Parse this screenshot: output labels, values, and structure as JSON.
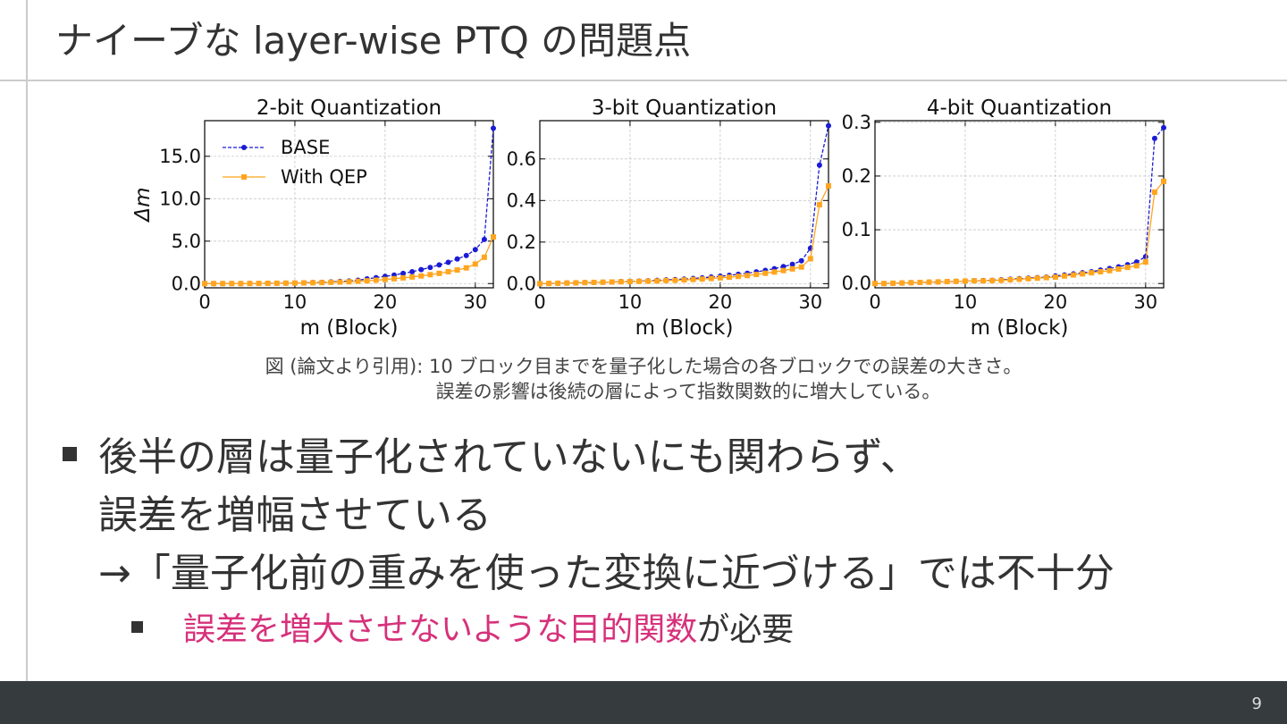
{
  "title": "ナイーブな layer-wise PTQ の問題点",
  "chart_data": [
    {
      "type": "line",
      "title": "2-bit Quantization",
      "xlabel": "m (Block)",
      "ylabel": "Δm",
      "legend": "upper left",
      "grid": true,
      "x": [
        0,
        1,
        2,
        3,
        4,
        5,
        6,
        7,
        8,
        9,
        10,
        11,
        12,
        13,
        14,
        15,
        16,
        17,
        18,
        19,
        20,
        21,
        22,
        23,
        24,
        25,
        26,
        27,
        28,
        29,
        30,
        31,
        32
      ],
      "xlim": [
        0,
        32
      ],
      "xticks": [
        0,
        10,
        20,
        30
      ],
      "ylim": [
        -0.5,
        19.2
      ],
      "yticks": [
        {
          "value": 0,
          "label": "0.0"
        },
        {
          "value": 5,
          "label": "5.0"
        },
        {
          "value": 10,
          "label": "10.0"
        },
        {
          "value": 15,
          "label": "15.0"
        }
      ],
      "series": [
        {
          "name": "BASE",
          "color": "#1a1ad6",
          "values": [
            0,
            0,
            0,
            0,
            0,
            0.01,
            0.02,
            0.03,
            0.04,
            0.05,
            0.07,
            0.09,
            0.12,
            0.15,
            0.2,
            0.25,
            0.3,
            0.4,
            0.55,
            0.7,
            0.85,
            1.0,
            1.2,
            1.4,
            1.65,
            1.9,
            2.2,
            2.5,
            2.9,
            3.3,
            4.0,
            5.2,
            18.3
          ]
        },
        {
          "name": "With QEP",
          "color": "#ffa51f",
          "values": [
            0,
            0,
            0,
            0,
            0,
            0.01,
            0.02,
            0.03,
            0.04,
            0.05,
            0.06,
            0.08,
            0.1,
            0.12,
            0.15,
            0.18,
            0.22,
            0.27,
            0.33,
            0.4,
            0.48,
            0.57,
            0.67,
            0.78,
            0.9,
            1.05,
            1.2,
            1.4,
            1.6,
            1.85,
            2.3,
            3.1,
            5.5
          ]
        }
      ]
    },
    {
      "type": "line",
      "title": "3-bit Quantization",
      "xlabel": "m (Block)",
      "grid": true,
      "x": [
        0,
        1,
        2,
        3,
        4,
        5,
        6,
        7,
        8,
        9,
        10,
        11,
        12,
        13,
        14,
        15,
        16,
        17,
        18,
        19,
        20,
        21,
        22,
        23,
        24,
        25,
        26,
        27,
        28,
        29,
        30,
        31,
        32
      ],
      "xlim": [
        0,
        32
      ],
      "xticks": [
        0,
        10,
        20,
        30
      ],
      "ylim": [
        -0.02,
        0.784
      ],
      "yticks": [
        {
          "value": 0,
          "label": "0.0"
        },
        0.2,
        0.4,
        0.6
      ],
      "series": [
        {
          "name": "BASE",
          "color": "#1a1ad6",
          "values": [
            0,
            0.001,
            0.002,
            0.003,
            0.004,
            0.005,
            0.006,
            0.007,
            0.008,
            0.01,
            0.011,
            0.012,
            0.014,
            0.016,
            0.018,
            0.02,
            0.022,
            0.025,
            0.028,
            0.032,
            0.036,
            0.04,
            0.045,
            0.05,
            0.057,
            0.064,
            0.072,
            0.082,
            0.093,
            0.11,
            0.17,
            0.57,
            0.76
          ]
        },
        {
          "name": "With QEP",
          "color": "#ffa51f",
          "values": [
            0,
            0.001,
            0.002,
            0.003,
            0.004,
            0.005,
            0.006,
            0.007,
            0.008,
            0.009,
            0.01,
            0.011,
            0.012,
            0.013,
            0.015,
            0.016,
            0.018,
            0.02,
            0.022,
            0.025,
            0.028,
            0.031,
            0.035,
            0.039,
            0.044,
            0.05,
            0.056,
            0.063,
            0.071,
            0.08,
            0.12,
            0.38,
            0.47
          ]
        }
      ]
    },
    {
      "type": "line",
      "title": "4-bit Quantization",
      "xlabel": "m (Block)",
      "grid": true,
      "x": [
        0,
        1,
        2,
        3,
        4,
        5,
        6,
        7,
        8,
        9,
        10,
        11,
        12,
        13,
        14,
        15,
        16,
        17,
        18,
        19,
        20,
        21,
        22,
        23,
        24,
        25,
        26,
        27,
        28,
        29,
        30,
        31,
        32
      ],
      "xlim": [
        0,
        32
      ],
      "xticks": [
        0,
        10,
        20,
        30
      ],
      "ylim": [
        -0.008,
        0.303
      ],
      "yticks": [
        {
          "value": 0,
          "label": "0.0"
        },
        0.1,
        0.2,
        0.3
      ],
      "series": [
        {
          "name": "BASE",
          "color": "#1a1ad6",
          "values": [
            0,
            0,
            0.0005,
            0.001,
            0.0015,
            0.002,
            0.0025,
            0.003,
            0.0035,
            0.004,
            0.0045,
            0.005,
            0.0055,
            0.006,
            0.007,
            0.008,
            0.009,
            0.01,
            0.011,
            0.012,
            0.014,
            0.016,
            0.018,
            0.02,
            0.022,
            0.025,
            0.028,
            0.031,
            0.035,
            0.04,
            0.05,
            0.27,
            0.29
          ]
        },
        {
          "name": "With QEP",
          "color": "#ffa51f",
          "values": [
            0,
            0,
            0.0005,
            0.001,
            0.0015,
            0.002,
            0.0025,
            0.003,
            0.0035,
            0.004,
            0.0045,
            0.005,
            0.005,
            0.0055,
            0.006,
            0.007,
            0.008,
            0.009,
            0.01,
            0.011,
            0.012,
            0.014,
            0.016,
            0.018,
            0.02,
            0.022,
            0.024,
            0.027,
            0.03,
            0.033,
            0.04,
            0.17,
            0.19
          ]
        }
      ]
    }
  ],
  "caption": [
    "図 (論文より引用): 10 ブロック目までを量子化した場合の各ブロックでの誤差の大きさ。",
    "誤差の影響は後続の層によって指数関数的に増大している。"
  ],
  "bullets": [
    {
      "lines": [
        "後半の層は量子化されていないにも関わらず、",
        "誤差を増幅させている",
        "→「量子化前の重みを使った変換に近づける」では不十分"
      ]
    },
    {
      "highlight": "誤差を増大させないような目的関数",
      "text": "が必要"
    }
  ],
  "page_number": "9"
}
